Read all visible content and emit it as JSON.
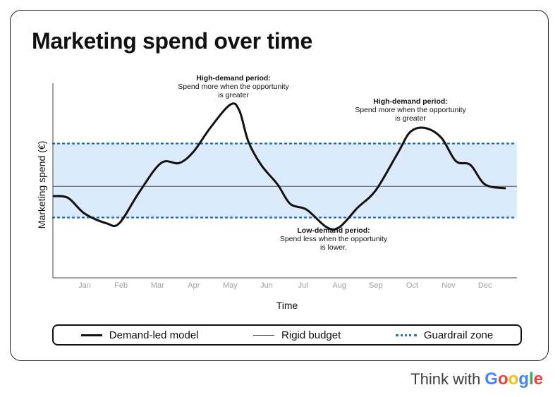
{
  "title": "Marketing spend over time",
  "chart_data": {
    "type": "line",
    "xlabel": "Time",
    "ylabel": "Marketing spend (€)",
    "categories": [
      "Jan",
      "Feb",
      "Mar",
      "Apr",
      "May",
      "Jun",
      "Jul",
      "Aug",
      "Sep",
      "Oct",
      "Nov",
      "Dec"
    ],
    "ylim": [
      0,
      100
    ],
    "series": [
      {
        "name": "Demand-led model",
        "x": [
          -0.85,
          -0.45,
          0,
          0.6,
          0.95,
          1.5,
          2.1,
          2.6,
          3.0,
          3.45,
          4.0,
          4.25,
          4.5,
          4.85,
          5.3,
          5.65,
          6.1,
          6.65,
          7.0,
          7.5,
          8.0,
          8.6,
          8.95,
          9.35,
          9.8,
          10.2,
          10.6,
          11.0,
          11.55
        ],
        "y": [
          42,
          41,
          33,
          28,
          28,
          44,
          59,
          59,
          65,
          77,
          89,
          86,
          70,
          58,
          48,
          38,
          35,
          26,
          26,
          36,
          45,
          64,
          75,
          77,
          72,
          60,
          58,
          48,
          46
        ]
      },
      {
        "name": "Rigid budget",
        "values": [
          47,
          47,
          47,
          47,
          47,
          47,
          47,
          47,
          47,
          47,
          47,
          47
        ]
      }
    ],
    "bands": [
      {
        "name": "Guardrail zone",
        "from": 31,
        "to": 69
      }
    ],
    "annotations": [
      {
        "id": "high-demand-1",
        "title": "High-demand period:",
        "text_lines": [
          "Spend more when the opportunity",
          "is greater"
        ]
      },
      {
        "id": "high-demand-2",
        "title": "High-demand period:",
        "text_lines": [
          "Spend more when the opportunity",
          "is greater"
        ]
      },
      {
        "id": "low-demand",
        "title": "Low-demand period:",
        "text_lines": [
          "Spend less when the opportunity",
          "is lower."
        ]
      }
    ],
    "legend_position": "bottom",
    "grid": false
  },
  "legend": {
    "demand": "Demand-led model",
    "rigid": "Rigid budget",
    "guard": "Guardrail zone"
  },
  "footer": {
    "prefix": "Think with",
    "brand_letters": [
      "G",
      "o",
      "o",
      "g",
      "l",
      "e"
    ],
    "brand_colors": [
      "#4285F4",
      "#EA4335",
      "#FBBC05",
      "#4285F4",
      "#34A853",
      "#EA4335"
    ]
  },
  "colors": {
    "band_fill": "#dcebfb",
    "guard_line": "#2a72b8",
    "curve": "#111111",
    "rigid_line": "#555555",
    "axis": "#444444",
    "tick_label": "#9aa0a6"
  }
}
